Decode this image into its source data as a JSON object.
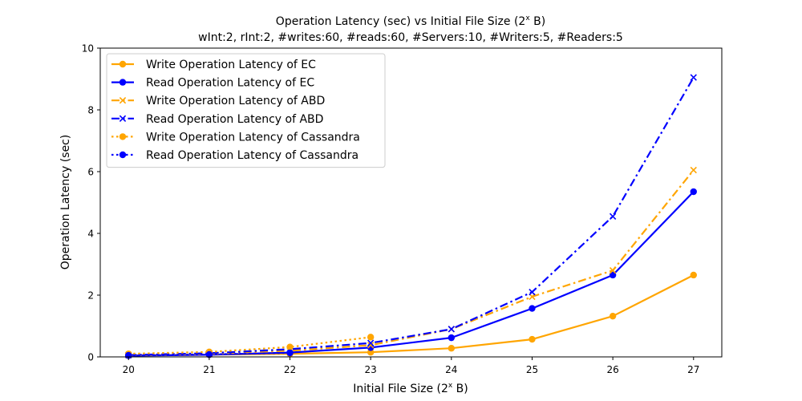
{
  "chart_data": {
    "type": "line",
    "title": "Operation Latency (sec) vs Initial File Size (2",
    "title_sup": "x",
    "title_tail": " B)",
    "subtitle": "wInt:2, rInt:2, #writes:60, #reads:60, #Servers:10, #Writers:5, #Readers:5",
    "xlabel": "Initial File Size (2",
    "xlabel_sup": "x",
    "xlabel_tail": " B)",
    "ylabel": "Operation Latency (sec)",
    "x": [
      20,
      21,
      22,
      23,
      24,
      25,
      26,
      27
    ],
    "xlim": [
      19.65,
      27.35
    ],
    "ylim": [
      0,
      10
    ],
    "yticks": [
      0,
      2,
      4,
      6,
      8,
      10
    ],
    "grid": false,
    "legend_position": "top-left",
    "series": [
      {
        "name": "Write Operation Latency of EC",
        "color": "#FFA500",
        "linestyle": "solid",
        "marker": "circle",
        "values": [
          0.05,
          0.07,
          0.1,
          0.15,
          0.28,
          0.57,
          1.32,
          2.65
        ]
      },
      {
        "name": "Read Operation Latency of EC",
        "color": "#0000FF",
        "linestyle": "solid",
        "marker": "circle",
        "values": [
          0.04,
          0.07,
          0.14,
          0.3,
          0.62,
          1.57,
          2.65,
          5.35
        ]
      },
      {
        "name": "Write Operation Latency of ABD",
        "color": "#FFA500",
        "linestyle": "dashdot",
        "marker": "x",
        "values": [
          0.05,
          0.1,
          0.2,
          0.38,
          0.9,
          1.95,
          2.8,
          6.05
        ]
      },
      {
        "name": "Read Operation Latency of ABD",
        "color": "#0000FF",
        "linestyle": "dashdot",
        "marker": "x",
        "values": [
          0.06,
          0.12,
          0.25,
          0.45,
          0.9,
          2.1,
          4.55,
          9.05
        ]
      },
      {
        "name": "Write Operation Latency of Cassandra",
        "color": "#FFA500",
        "linestyle": "dotted",
        "marker": "circle",
        "values": [
          0.1,
          0.16,
          0.32,
          0.64,
          null,
          null,
          null,
          null
        ]
      },
      {
        "name": "Read Operation Latency of Cassandra",
        "color": "#0000FF",
        "linestyle": "dotted",
        "marker": "circle",
        "values": [
          0.05,
          0.08,
          0.13,
          null,
          null,
          null,
          null,
          null
        ]
      }
    ]
  }
}
